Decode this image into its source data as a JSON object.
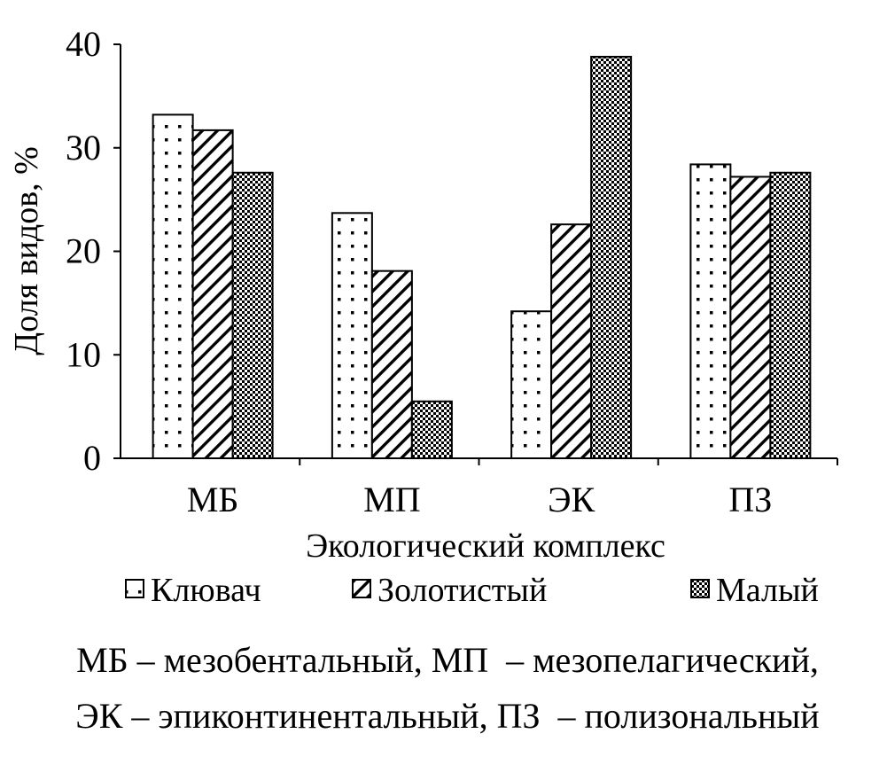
{
  "chart_data": {
    "type": "bar",
    "xlabel": "Экологический комплекс",
    "ylabel": "Доля видов, %",
    "ylim": [
      0,
      40
    ],
    "yticks": [
      0,
      10,
      20,
      30,
      40
    ],
    "grid": false,
    "legend_position": "bottom",
    "categories": [
      "МБ",
      "МП",
      "ЭК",
      "ПЗ"
    ],
    "series": [
      {
        "name": "Клювач",
        "pattern": "dots",
        "values": [
          33.2,
          23.7,
          14.2,
          28.4
        ]
      },
      {
        "name": "Золотистый",
        "pattern": "diagonal-hatch",
        "values": [
          31.7,
          18.1,
          22.6,
          27.2
        ]
      },
      {
        "name": "Малый",
        "pattern": "checker",
        "values": [
          27.6,
          5.5,
          38.8,
          27.6
        ]
      }
    ]
  },
  "caption": {
    "line1": "МБ – мезобентальный, МП  – мезопелагический,",
    "line2": "ЭК – эпиконтинентальный, ПЗ  – полизональный"
  }
}
